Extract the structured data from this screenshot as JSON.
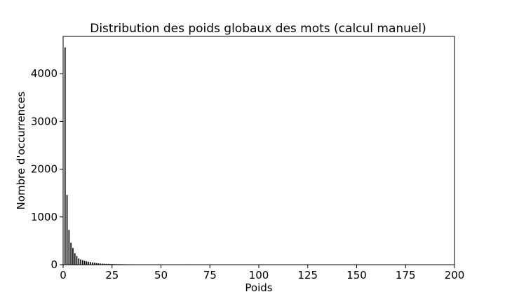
{
  "chart_data": {
    "type": "bar",
    "title": "Distribution des poids globaux des mots (calcul manuel)",
    "xlabel": "Poids",
    "ylabel": "Nombre d'occurrences",
    "xlim": [
      0,
      200
    ],
    "ylim": [
      0,
      4780
    ],
    "xticks": [
      "0",
      "25",
      "50",
      "75",
      "100",
      "125",
      "150",
      "175",
      "200"
    ],
    "yticks": [
      "0",
      "1000",
      "2000",
      "3000",
      "4000"
    ],
    "grid": false,
    "bar_color": "#000000",
    "x": [
      1,
      2,
      3,
      4,
      5,
      6,
      7,
      8,
      9,
      10,
      11,
      12,
      13,
      14,
      15,
      16,
      17,
      18,
      19,
      20,
      21,
      22,
      23,
      24,
      25,
      26,
      27,
      28,
      29,
      30,
      31,
      32,
      33,
      34,
      35,
      36,
      37,
      38,
      39,
      40,
      41,
      42,
      43,
      44,
      45,
      46,
      47,
      48,
      63
    ],
    "values": [
      4550,
      1460,
      730,
      460,
      350,
      240,
      180,
      130,
      110,
      95,
      80,
      70,
      60,
      55,
      45,
      40,
      35,
      30,
      25,
      22,
      20,
      18,
      16,
      15,
      14,
      13,
      12,
      11,
      10,
      10,
      9,
      9,
      8,
      8,
      8,
      7,
      7,
      6,
      6,
      6,
      6,
      6,
      5,
      5,
      5,
      5,
      4,
      4,
      8
    ]
  }
}
